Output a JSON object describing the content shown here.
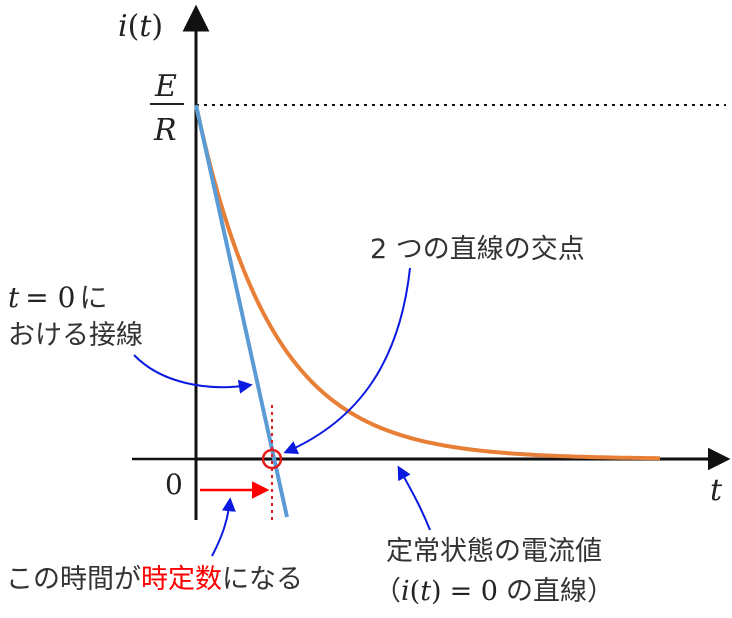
{
  "axes": {
    "y_label_i": "i",
    "y_label_paren_open": "(",
    "y_label_t": "t",
    "y_label_paren_close": ")",
    "x_label": "t",
    "origin_label": "0",
    "fraction_numerator": "E",
    "fraction_denominator": "R"
  },
  "annotations": {
    "intersection": "2 つの直線の交点",
    "tangent_line1_t": "t",
    "tangent_line1_eq": "= 0",
    "tangent_line1_suffix": "に",
    "tangent_line2": "おける接線",
    "time_constant_prefix": "この時間が",
    "time_constant_highlight": "時定数",
    "time_constant_suffix": "になる",
    "steady_line1": "定常状態の電流値",
    "steady_line2_open": "（",
    "steady_line2_i": "i",
    "steady_line2_paren_open": "(",
    "steady_line2_t": "t",
    "steady_line2_paren_close": ")",
    "steady_line2_eq": "= 0",
    "steady_line2_suffix": "の直線）"
  },
  "colors": {
    "axis": "#111111",
    "curve": "#e87f36",
    "tangent": "#5b9bd5",
    "steady_line": "#a6a6a6",
    "arrow_blue": "#0a1ae0",
    "highlight_red": "#ff0000",
    "marker_red": "#e31a1a"
  }
}
